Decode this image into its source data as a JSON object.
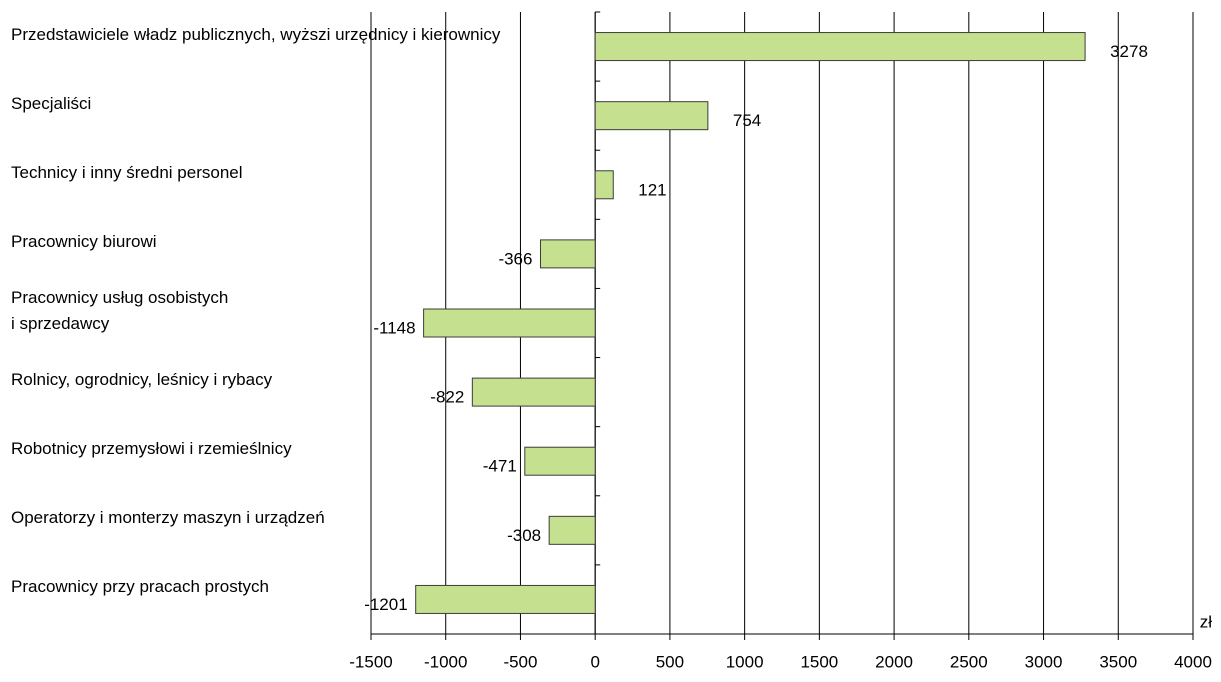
{
  "chart_data": {
    "type": "bar",
    "orientation": "horizontal",
    "categories": [
      "Przedstawiciele władz publicznych, wyższi urzędnicy i kierownicy",
      "Specjaliści",
      "Technicy i inny średni personel",
      "Pracownicy biurowi",
      "Pracownicy usług osobistych\ni sprzedawcy",
      "Rolnicy, ogrodnicy, leśnicy i rybacy",
      "Robotnicy przemysłowi i rzemieślnicy",
      "Operatorzy i monterzy maszyn i urządzeń",
      "Pracownicy przy pracach prostych"
    ],
    "values": [
      3278,
      754,
      121,
      -366,
      -1148,
      -822,
      -471,
      -308,
      -1201
    ],
    "color": "#c5e08e",
    "xlim": [
      -1500,
      4000
    ],
    "xticks": [
      -1500,
      -1000,
      -500,
      0,
      500,
      1000,
      1500,
      2000,
      2500,
      3000,
      3500,
      4000
    ],
    "x_unit": "zł",
    "grid": true
  }
}
